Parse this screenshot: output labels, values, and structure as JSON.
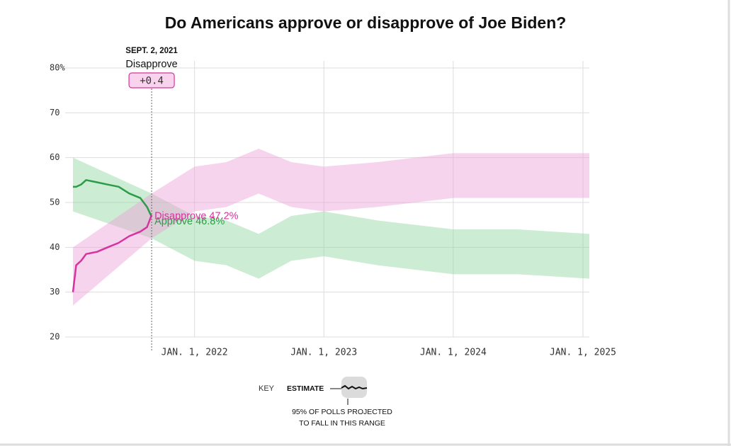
{
  "chart_data": {
    "type": "line",
    "title": "Do Americans approve or disapprove of Joe Biden?",
    "xlim": [
      "2021-01-23",
      "2025-01-19"
    ],
    "xticks": [
      {
        "value": "2022-01-01",
        "label": "JAN. 1, 2022"
      },
      {
        "value": "2023-01-01",
        "label": "JAN. 1, 2023"
      },
      {
        "value": "2024-01-01",
        "label": "JAN. 1, 2024"
      },
      {
        "value": "2025-01-01",
        "label": "JAN. 1, 2025"
      }
    ],
    "ylim": [
      20,
      80
    ],
    "yticks": [
      20,
      30,
      40,
      50,
      60,
      70,
      {
        "value": 80,
        "label": "80%"
      }
    ],
    "grid": true,
    "x": [
      "2021-01-23",
      "2021-02-01",
      "2021-02-15",
      "2021-03-01",
      "2021-04-01",
      "2021-05-01",
      "2021-06-01",
      "2021-07-01",
      "2021-08-01",
      "2021-08-20",
      "2021-09-02"
    ],
    "band_x": [
      "2021-01-23",
      "2021-09-02",
      "2022-01-01",
      "2022-04-01",
      "2022-07-01",
      "2022-10-01",
      "2023-01-01",
      "2023-06-01",
      "2024-01-01",
      "2024-07-01",
      "2025-01-19"
    ],
    "series": [
      {
        "name": "Approve",
        "color": "#2b9c47",
        "band_color": "#8fd4a0",
        "values": [
          53.5,
          53.5,
          54,
          55,
          54.5,
          54,
          53.5,
          52,
          51,
          49,
          46.8
        ],
        "band_low": [
          48,
          42,
          37,
          36,
          33,
          37,
          38,
          36,
          34,
          34,
          33
        ],
        "band_high": [
          60,
          52,
          47,
          46,
          43,
          47,
          48,
          46,
          44,
          44,
          43
        ],
        "end_label": "Approve 46.8%"
      },
      {
        "name": "Disapprove",
        "color": "#d6339e",
        "band_color": "#ee9fd6",
        "values": [
          30,
          36,
          37,
          38.5,
          39,
          40,
          41,
          42.5,
          43.5,
          44.5,
          47.2
        ],
        "band_low": [
          27,
          42,
          48,
          49,
          52,
          49,
          48,
          49,
          51,
          51,
          51
        ],
        "band_high": [
          40,
          52,
          58,
          59,
          62,
          59,
          58,
          59,
          61,
          61,
          61
        ],
        "end_label": "Disapprove 47.2%"
      }
    ],
    "annotation": {
      "date": "SEPT. 2, 2021",
      "x": "2021-09-02",
      "leader": "Disapprove",
      "margin": 0.4,
      "margin_label": "+0.4"
    },
    "key": {
      "title": "KEY",
      "estimate": "ESTIMATE",
      "range_note": [
        "95% OF POLLS PROJECTED",
        "TO FALL IN THIS RANGE"
      ]
    }
  }
}
